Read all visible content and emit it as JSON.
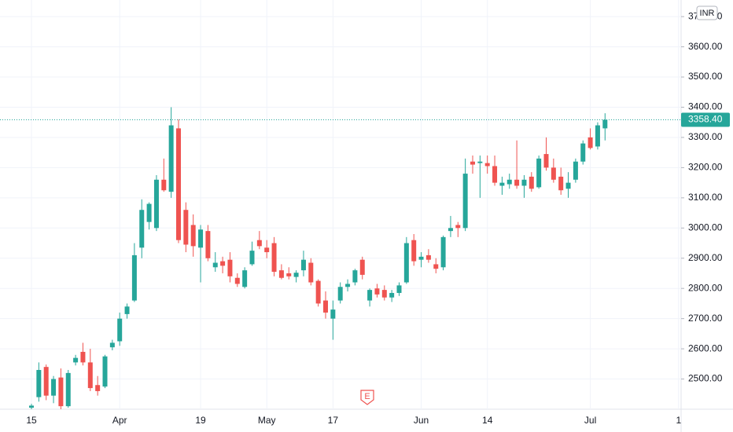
{
  "chart_data": {
    "type": "candlestick",
    "currency": "INR",
    "event_label": "E",
    "up_color": "#26a69a",
    "down_color": "#ef5350",
    "grid": true,
    "ylim": [
      2400,
      3755
    ],
    "yticks": [
      {
        "value": 2500,
        "label": "2500.00"
      },
      {
        "value": 2600,
        "label": "2600.00"
      },
      {
        "value": 2700,
        "label": "2700.00"
      },
      {
        "value": 2800,
        "label": "2800.00"
      },
      {
        "value": 2900,
        "label": "2900.00"
      },
      {
        "value": 3000,
        "label": "3000.00"
      },
      {
        "value": 3100,
        "label": "3100.00"
      },
      {
        "value": 3200,
        "label": "3200.00"
      },
      {
        "value": 3300,
        "label": "3300.00"
      },
      {
        "value": 3400,
        "label": "3400.00"
      },
      {
        "value": 3500,
        "label": "3500.00"
      },
      {
        "value": 3600,
        "label": "3600.00"
      },
      {
        "value": 3700,
        "label": "3700.00"
      }
    ],
    "last_price": {
      "value": 3358.4,
      "label": "3358.40"
    },
    "categories": [
      "15",
      null,
      null,
      null,
      null,
      null,
      null,
      null,
      null,
      null,
      null,
      null,
      "Apr",
      null,
      null,
      null,
      null,
      null,
      null,
      null,
      null,
      null,
      null,
      "19",
      null,
      null,
      null,
      null,
      null,
      null,
      null,
      null,
      "May",
      null,
      null,
      null,
      null,
      null,
      null,
      null,
      null,
      "17",
      null,
      null,
      null,
      null,
      null,
      null,
      null,
      null,
      null,
      null,
      null,
      "Jun",
      null,
      null,
      null,
      null,
      null,
      null,
      null,
      null,
      "14",
      null,
      null,
      null,
      null,
      null,
      null,
      null,
      null,
      null,
      null,
      null,
      null,
      null,
      "Jul",
      null,
      null,
      null,
      null,
      null,
      null,
      null,
      null,
      null,
      null,
      null,
      "1"
    ],
    "ohlc": [
      [
        2405,
        2418,
        2400,
        2412
      ],
      [
        2440,
        2555,
        2425,
        2530
      ],
      [
        2540,
        2548,
        2430,
        2445
      ],
      [
        2445,
        2510,
        2420,
        2500
      ],
      [
        2505,
        2535,
        2400,
        2410
      ],
      [
        2410,
        2530,
        2405,
        2520
      ],
      [
        2555,
        2580,
        2545,
        2570
      ],
      [
        2590,
        2620,
        2545,
        2555
      ],
      [
        2555,
        2600,
        2460,
        2470
      ],
      [
        2480,
        2510,
        2445,
        2460
      ],
      [
        2475,
        2580,
        2470,
        2575
      ],
      [
        2605,
        2630,
        2595,
        2620
      ],
      [
        2625,
        2720,
        2610,
        2700
      ],
      [
        2715,
        2750,
        2700,
        2740
      ],
      [
        2760,
        2950,
        2755,
        2910
      ],
      [
        2935,
        3095,
        2900,
        3060
      ],
      [
        3020,
        3085,
        2995,
        3080
      ],
      [
        3000,
        3175,
        2990,
        3160
      ],
      [
        3160,
        3230,
        3120,
        3125
      ],
      [
        3120,
        3400,
        3100,
        3340
      ],
      [
        3330,
        3360,
        2950,
        2960
      ],
      [
        3060,
        3085,
        2920,
        2945
      ],
      [
        3010,
        3045,
        2905,
        2940
      ],
      [
        2935,
        3010,
        2820,
        2995
      ],
      [
        2990,
        3010,
        2890,
        2900
      ],
      [
        2870,
        2920,
        2855,
        2885
      ],
      [
        2890,
        2905,
        2850,
        2875
      ],
      [
        2895,
        2920,
        2820,
        2840
      ],
      [
        2835,
        2850,
        2805,
        2815
      ],
      [
        2805,
        2870,
        2800,
        2860
      ],
      [
        2880,
        2955,
        2875,
        2925
      ],
      [
        2960,
        2990,
        2930,
        2940
      ],
      [
        2935,
        2960,
        2900,
        2920
      ],
      [
        2950,
        2970,
        2840,
        2855
      ],
      [
        2860,
        2880,
        2830,
        2835
      ],
      [
        2850,
        2870,
        2830,
        2840
      ],
      [
        2838,
        2860,
        2820,
        2852
      ],
      [
        2860,
        2925,
        2840,
        2895
      ],
      [
        2885,
        2900,
        2810,
        2820
      ],
      [
        2825,
        2830,
        2740,
        2750
      ],
      [
        2760,
        2790,
        2700,
        2720
      ],
      [
        2700,
        2760,
        2630,
        2730
      ],
      [
        2760,
        2820,
        2750,
        2805
      ],
      [
        2805,
        2830,
        2790,
        2815
      ],
      [
        2820,
        2865,
        2810,
        2860
      ],
      [
        2895,
        2905,
        2830,
        2845
      ],
      [
        2760,
        2800,
        2740,
        2795
      ],
      [
        2800,
        2815,
        2770,
        2780
      ],
      [
        2795,
        2810,
        2760,
        2770
      ],
      [
        2770,
        2795,
        2755,
        2785
      ],
      [
        2785,
        2820,
        2775,
        2810
      ],
      [
        2820,
        2970,
        2815,
        2950
      ],
      [
        2960,
        2980,
        2875,
        2890
      ],
      [
        2895,
        2920,
        2870,
        2905
      ],
      [
        2910,
        2930,
        2885,
        2895
      ],
      [
        2880,
        2900,
        2850,
        2865
      ],
      [
        2870,
        2975,
        2860,
        2970
      ],
      [
        2990,
        3040,
        2970,
        3000
      ],
      [
        3010,
        3020,
        2970,
        3000
      ],
      [
        3000,
        3230,
        2990,
        3180
      ],
      [
        3220,
        3240,
        3180,
        3210
      ],
      [
        3215,
        3240,
        3100,
        3220
      ],
      [
        3215,
        3240,
        3180,
        3205
      ],
      [
        3205,
        3240,
        3140,
        3150
      ],
      [
        3140,
        3170,
        3110,
        3150
      ],
      [
        3145,
        3180,
        3130,
        3160
      ],
      [
        3160,
        3290,
        3130,
        3140
      ],
      [
        3140,
        3175,
        3100,
        3160
      ],
      [
        3170,
        3185,
        3120,
        3130
      ],
      [
        3135,
        3240,
        3130,
        3230
      ],
      [
        3245,
        3300,
        3190,
        3200
      ],
      [
        3200,
        3230,
        3150,
        3160
      ],
      [
        3170,
        3200,
        3110,
        3125
      ],
      [
        3130,
        3185,
        3100,
        3150
      ],
      [
        3160,
        3230,
        3150,
        3220
      ],
      [
        3220,
        3290,
        3210,
        3280
      ],
      [
        3300,
        3330,
        3260,
        3265
      ],
      [
        3270,
        3350,
        3260,
        3340
      ],
      [
        3330,
        3380,
        3290,
        3358.4
      ],
      null,
      null,
      null,
      null,
      null,
      null,
      null,
      null,
      null,
      null
    ]
  }
}
